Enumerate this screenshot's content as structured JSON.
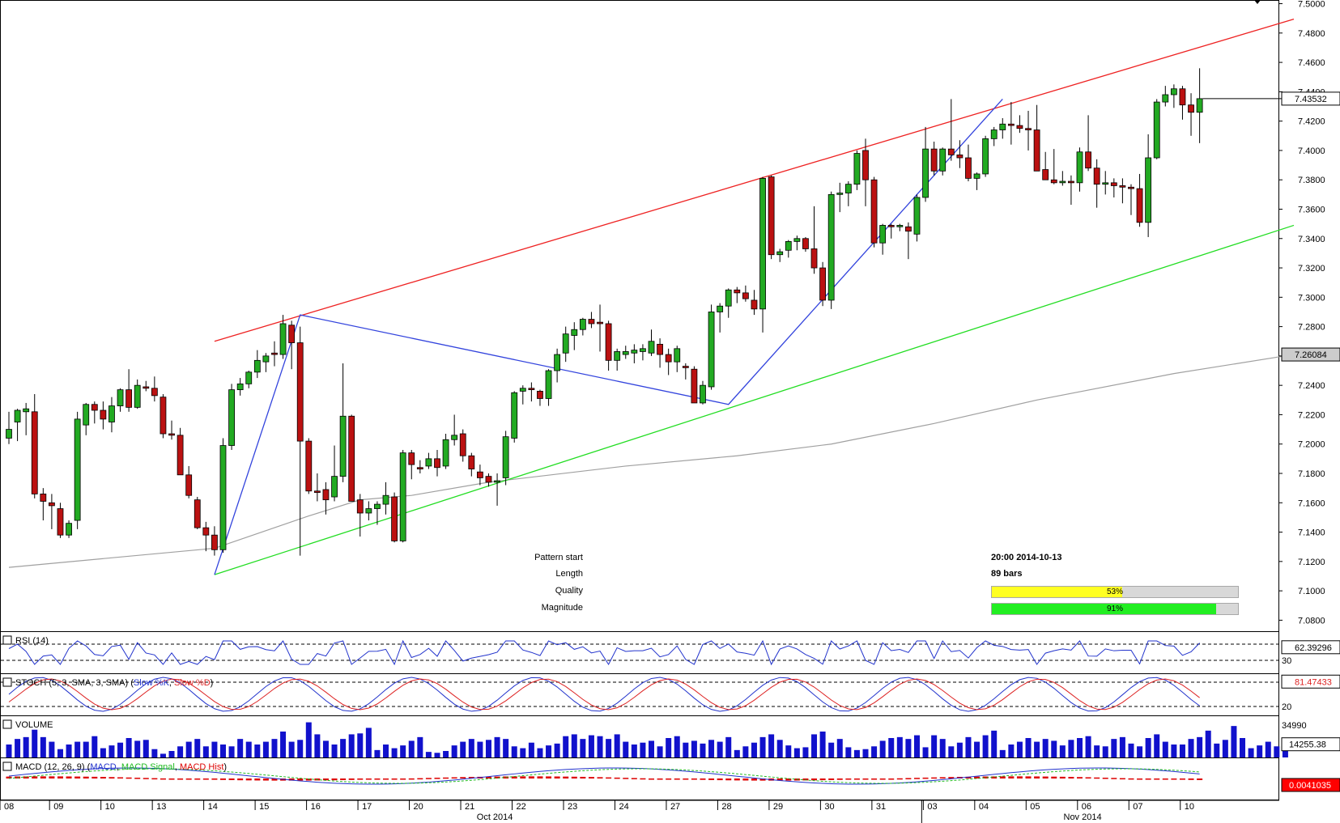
{
  "colors": {
    "up": "#22aa22",
    "down": "#bb1111",
    "resistance": "#ee2222",
    "support": "#22dd22",
    "pattern": "#3344dd",
    "ma": "#a0a0a0",
    "volume": "#1111cc",
    "rsi": "#2233cc",
    "stoch_k": "#2233cc",
    "stoch_d": "#dd2222",
    "macd": "#2233cc",
    "macd_signal": "#22bb22",
    "macd_hist": "#dd0000",
    "quality_fill": "#ffff22",
    "magnitude_fill": "#22ee22"
  },
  "info_panel": {
    "pattern_start_label": "Pattern start",
    "pattern_start_value": "20:00 2014-10-13",
    "length_label": "Length",
    "length_value": "89 bars",
    "quality_label": "Quality",
    "quality_value": "53%",
    "quality_pct": 53,
    "magnitude_label": "Magnitude",
    "magnitude_value": "91%",
    "magnitude_pct": 91
  },
  "chart_data": {
    "type": "candlestick",
    "y_axis_ticks": [
      "7.5000",
      "7.4800",
      "7.4600",
      "7.4400",
      "7.4200",
      "7.4000",
      "7.3800",
      "7.3600",
      "7.3400",
      "7.3200",
      "7.3000",
      "7.2800",
      "7.2600",
      "7.2400",
      "7.2200",
      "7.2000",
      "7.1800",
      "7.1600",
      "7.1400",
      "7.1200",
      "7.1000",
      "7.0800"
    ],
    "ylim": [
      7.0725,
      7.5025
    ],
    "last_price_label": "7.43532",
    "ma_label": "7.26084",
    "x_labels": [
      "08",
      "09",
      "10",
      "13",
      "14",
      "15",
      "16",
      "17",
      "20",
      "21",
      "22",
      "23",
      "24",
      "27",
      "28",
      "29",
      "30",
      "31",
      "03",
      "04",
      "05",
      "06",
      "07",
      "10"
    ],
    "month_labels": [
      "Oct 2014",
      "Nov 2014"
    ],
    "candles": [
      [
        7.204,
        7.222,
        7.2,
        7.21
      ],
      [
        7.215,
        7.224,
        7.202,
        7.223
      ],
      [
        7.222,
        7.228,
        7.206,
        7.224
      ],
      [
        7.222,
        7.234,
        7.163,
        7.166
      ],
      [
        7.166,
        7.17,
        7.148,
        7.161
      ],
      [
        7.16,
        7.166,
        7.142,
        7.158
      ],
      [
        7.156,
        7.16,
        7.136,
        7.138
      ],
      [
        7.138,
        7.148,
        7.136,
        7.146
      ],
      [
        7.148,
        7.222,
        7.142,
        7.217
      ],
      [
        7.213,
        7.228,
        7.206,
        7.227
      ],
      [
        7.227,
        7.229,
        7.214,
        7.223
      ],
      [
        7.223,
        7.229,
        7.21,
        7.217
      ],
      [
        7.215,
        7.232,
        7.208,
        7.226
      ],
      [
        7.226,
        7.238,
        7.222,
        7.237
      ],
      [
        7.237,
        7.251,
        7.222,
        7.225
      ],
      [
        7.225,
        7.244,
        7.224,
        7.24
      ],
      [
        7.239,
        7.243,
        7.236,
        7.238
      ],
      [
        7.238,
        7.246,
        7.229,
        7.233
      ],
      [
        7.232,
        7.234,
        7.204,
        7.207
      ],
      [
        7.207,
        7.216,
        7.203,
        7.206
      ],
      [
        7.206,
        7.211,
        7.179,
        7.179
      ],
      [
        7.179,
        7.185,
        7.163,
        7.165
      ],
      [
        7.162,
        7.164,
        7.142,
        7.143
      ],
      [
        7.143,
        7.147,
        7.127,
        7.138
      ],
      [
        7.138,
        7.144,
        7.124,
        7.128
      ],
      [
        7.128,
        7.204,
        7.126,
        7.199
      ],
      [
        7.199,
        7.241,
        7.196,
        7.237
      ],
      [
        7.237,
        7.245,
        7.233,
        7.241
      ],
      [
        7.241,
        7.25,
        7.238,
        7.249
      ],
      [
        7.249,
        7.264,
        7.245,
        7.257
      ],
      [
        7.256,
        7.262,
        7.249,
        7.26
      ],
      [
        7.262,
        7.27,
        7.253,
        7.261
      ],
      [
        7.261,
        7.288,
        7.258,
        7.282
      ],
      [
        7.281,
        7.284,
        7.251,
        7.269
      ],
      [
        7.269,
        7.28,
        7.124,
        7.202
      ],
      [
        7.202,
        7.204,
        7.166,
        7.168
      ],
      [
        7.168,
        7.18,
        7.161,
        7.167
      ],
      [
        7.169,
        7.174,
        7.152,
        7.162
      ],
      [
        7.164,
        7.199,
        7.161,
        7.178
      ],
      [
        7.178,
        7.255,
        7.174,
        7.219
      ],
      [
        7.219,
        7.22,
        7.161,
        7.161
      ],
      [
        7.162,
        7.166,
        7.137,
        7.153
      ],
      [
        7.153,
        7.161,
        7.148,
        7.156
      ],
      [
        7.156,
        7.161,
        7.145,
        7.159
      ],
      [
        7.159,
        7.174,
        7.152,
        7.165
      ],
      [
        7.164,
        7.167,
        7.133,
        7.134
      ],
      [
        7.134,
        7.196,
        7.133,
        7.194
      ],
      [
        7.194,
        7.196,
        7.176,
        7.186
      ],
      [
        7.184,
        7.189,
        7.18,
        7.183
      ],
      [
        7.185,
        7.194,
        7.183,
        7.19
      ],
      [
        7.19,
        7.196,
        7.178,
        7.184
      ],
      [
        7.185,
        7.207,
        7.183,
        7.203
      ],
      [
        7.203,
        7.22,
        7.199,
        7.206
      ],
      [
        7.207,
        7.21,
        7.188,
        7.192
      ],
      [
        7.192,
        7.194,
        7.178,
        7.183
      ],
      [
        7.181,
        7.186,
        7.172,
        7.177
      ],
      [
        7.178,
        7.18,
        7.171,
        7.174
      ],
      [
        7.174,
        7.18,
        7.158,
        7.175
      ],
      [
        7.177,
        7.209,
        7.172,
        7.205
      ],
      [
        7.204,
        7.236,
        7.201,
        7.235
      ],
      [
        7.236,
        7.24,
        7.227,
        7.238
      ],
      [
        7.238,
        7.242,
        7.229,
        7.237
      ],
      [
        7.236,
        7.237,
        7.226,
        7.231
      ],
      [
        7.231,
        7.251,
        7.226,
        7.25
      ],
      [
        7.25,
        7.265,
        7.242,
        7.261
      ],
      [
        7.262,
        7.28,
        7.256,
        7.275
      ],
      [
        7.274,
        7.283,
        7.264,
        7.278
      ],
      [
        7.278,
        7.286,
        7.274,
        7.285
      ],
      [
        7.285,
        7.29,
        7.279,
        7.282
      ],
      [
        7.283,
        7.295,
        7.263,
        7.282
      ],
      [
        7.282,
        7.284,
        7.25,
        7.257
      ],
      [
        7.257,
        7.265,
        7.25,
        7.263
      ],
      [
        7.261,
        7.267,
        7.258,
        7.263
      ],
      [
        7.262,
        7.268,
        7.255,
        7.264
      ],
      [
        7.263,
        7.268,
        7.257,
        7.265
      ],
      [
        7.262,
        7.278,
        7.26,
        7.27
      ],
      [
        7.268,
        7.272,
        7.252,
        7.261
      ],
      [
        7.261,
        7.265,
        7.247,
        7.256
      ],
      [
        7.256,
        7.267,
        7.249,
        7.265
      ],
      [
        7.253,
        7.255,
        7.244,
        7.252
      ],
      [
        7.251,
        7.253,
        7.228,
        7.228
      ],
      [
        7.228,
        7.243,
        7.227,
        7.24
      ],
      [
        7.239,
        7.295,
        7.237,
        7.29
      ],
      [
        7.29,
        7.296,
        7.276,
        7.294
      ],
      [
        7.294,
        7.306,
        7.286,
        7.305
      ],
      [
        7.305,
        7.307,
        7.296,
        7.303
      ],
      [
        7.303,
        7.308,
        7.297,
        7.299
      ],
      [
        7.298,
        7.305,
        7.288,
        7.292
      ],
      [
        7.292,
        7.382,
        7.276,
        7.381
      ],
      [
        7.382,
        7.383,
        7.326,
        7.329
      ],
      [
        7.329,
        7.333,
        7.324,
        7.331
      ],
      [
        7.332,
        7.339,
        7.327,
        7.338
      ],
      [
        7.338,
        7.342,
        7.332,
        7.34
      ],
      [
        7.34,
        7.341,
        7.331,
        7.333
      ],
      [
        7.333,
        7.362,
        7.316,
        7.32
      ],
      [
        7.32,
        7.324,
        7.294,
        7.298
      ],
      [
        7.298,
        7.372,
        7.292,
        7.37
      ],
      [
        7.37,
        7.378,
        7.358,
        7.371
      ],
      [
        7.371,
        7.379,
        7.362,
        7.377
      ],
      [
        7.377,
        7.4,
        7.373,
        7.398
      ],
      [
        7.4,
        7.408,
        7.362,
        7.38
      ],
      [
        7.38,
        7.382,
        7.334,
        7.337
      ],
      [
        7.337,
        7.35,
        7.329,
        7.349
      ],
      [
        7.349,
        7.35,
        7.34,
        7.348
      ],
      [
        7.348,
        7.35,
        7.345,
        7.349
      ],
      [
        7.348,
        7.351,
        7.326,
        7.345
      ],
      [
        7.343,
        7.37,
        7.338,
        7.368
      ],
      [
        7.368,
        7.416,
        7.365,
        7.401
      ],
      [
        7.401,
        7.406,
        7.383,
        7.386
      ],
      [
        7.386,
        7.402,
        7.383,
        7.401
      ],
      [
        7.401,
        7.435,
        7.393,
        7.397
      ],
      [
        7.397,
        7.407,
        7.388,
        7.395
      ],
      [
        7.395,
        7.404,
        7.379,
        7.381
      ],
      [
        7.381,
        7.385,
        7.373,
        7.384
      ],
      [
        7.384,
        7.41,
        7.382,
        7.408
      ],
      [
        7.408,
        7.416,
        7.403,
        7.414
      ],
      [
        7.414,
        7.422,
        7.408,
        7.418
      ],
      [
        7.418,
        7.433,
        7.404,
        7.417
      ],
      [
        7.417,
        7.424,
        7.412,
        7.415
      ],
      [
        7.415,
        7.427,
        7.4,
        7.414
      ],
      [
        7.414,
        7.431,
        7.387,
        7.386
      ],
      [
        7.387,
        7.399,
        7.383,
        7.38
      ],
      [
        7.38,
        7.401,
        7.377,
        7.378
      ],
      [
        7.378,
        7.386,
        7.376,
        7.379
      ],
      [
        7.379,
        7.383,
        7.363,
        7.378
      ],
      [
        7.378,
        7.402,
        7.372,
        7.399
      ],
      [
        7.399,
        7.424,
        7.386,
        7.388
      ],
      [
        7.388,
        7.394,
        7.361,
        7.377
      ],
      [
        7.377,
        7.386,
        7.37,
        7.378
      ],
      [
        7.378,
        7.381,
        7.368,
        7.376
      ],
      [
        7.376,
        7.381,
        7.364,
        7.375
      ],
      [
        7.375,
        7.377,
        7.356,
        7.374
      ],
      [
        7.374,
        7.384,
        7.348,
        7.351
      ],
      [
        7.351,
        7.411,
        7.341,
        7.395
      ],
      [
        7.395,
        7.435,
        7.394,
        7.433
      ],
      [
        7.433,
        7.444,
        7.43,
        7.438
      ],
      [
        7.438,
        7.445,
        7.429,
        7.442
      ],
      [
        7.442,
        7.444,
        7.421,
        7.431
      ],
      [
        7.431,
        7.439,
        7.41,
        7.426
      ],
      [
        7.426,
        7.456,
        7.405,
        7.4353
      ]
    ],
    "moving_average": {
      "label": "7.26084",
      "points": [
        [
          0,
          7.116
        ],
        [
          24,
          7.129
        ],
        [
          35,
          7.151
        ],
        [
          41,
          7.162
        ],
        [
          47,
          7.165
        ],
        [
          56,
          7.174
        ],
        [
          72,
          7.185
        ],
        [
          85,
          7.192
        ],
        [
          96,
          7.2
        ],
        [
          108,
          7.214
        ],
        [
          120,
          7.23
        ],
        [
          136,
          7.248
        ],
        [
          150,
          7.261
        ]
      ]
    },
    "trendlines": [
      {
        "name": "resistance",
        "color_key": "resistance",
        "points": [
          [
            24,
            7.27
          ],
          [
            150,
            7.4895
          ]
        ]
      },
      {
        "name": "support",
        "color_key": "support",
        "points": [
          [
            24,
            7.111
          ],
          [
            150,
            7.349
          ]
        ]
      },
      {
        "name": "pattern",
        "color_key": "pattern",
        "points": [
          [
            24,
            7.111
          ],
          [
            34,
            7.288
          ],
          [
            84,
            7.227
          ],
          [
            116,
            7.435
          ]
        ]
      }
    ],
    "volume": {
      "title": "VOLUME",
      "ylim": [
        0,
        42000
      ],
      "level_label": "34990",
      "last_label": "14255.38",
      "values": [
        14000,
        20000,
        22000,
        30000,
        22000,
        17000,
        9000,
        14000,
        17000,
        17000,
        23000,
        10000,
        13000,
        16000,
        21000,
        18000,
        19000,
        9000,
        4000,
        7000,
        12000,
        17000,
        20000,
        12000,
        17000,
        14000,
        12000,
        20000,
        17000,
        14000,
        17000,
        20000,
        28000,
        17000,
        19000,
        38000,
        25000,
        18000,
        14000,
        20000,
        25000,
        26000,
        32000,
        8000,
        14000,
        10000,
        13000,
        18000,
        22000,
        6000,
        5000,
        7000,
        13000,
        17000,
        20000,
        17000,
        19000,
        22000,
        20000,
        12000,
        10000,
        16000,
        10000,
        13000,
        15000,
        23000,
        25000,
        20000,
        24000,
        23000,
        20000,
        25000,
        17000,
        14000,
        16000,
        18000,
        12000,
        21000,
        23000,
        16000,
        18000,
        15000,
        19000,
        17000,
        22000,
        8000,
        12000,
        16000,
        22000,
        25000,
        19000,
        13000,
        10000,
        11000,
        25000,
        28000,
        16000,
        20000,
        11000,
        8000,
        9000,
        12000,
        18000,
        21000,
        22000,
        20000,
        24000,
        11000,
        24000,
        20000,
        12000,
        16000,
        22000,
        17000,
        24000,
        29000,
        8000,
        14000,
        17000,
        21000,
        17000,
        20000,
        18000,
        13000,
        19000,
        21000,
        23000,
        13000,
        12000,
        20000,
        22000,
        15000,
        12000,
        21000,
        25000,
        17000,
        14000,
        14000,
        20000,
        22000,
        29000,
        15000,
        19000,
        34000,
        21000,
        10000,
        13000,
        17000,
        12000,
        14255
      ]
    },
    "rsi": {
      "title": "RSI (14)",
      "levels": [
        70,
        30
      ],
      "last_label": "62.39296"
    },
    "stochastic": {
      "title": "STOCH (5, 3, SMA, 3, SMA)",
      "k_label": "Slow %K",
      "d_label": "Slow %D",
      "levels": [
        80,
        20
      ],
      "last_label": "81.47433"
    },
    "macd": {
      "title": "MACD (12, 26, 9)",
      "macd_label": "MACD",
      "signal_label": "MACD Signal",
      "hist_label": "MACD Hist",
      "last_label": "0.0041035"
    }
  }
}
